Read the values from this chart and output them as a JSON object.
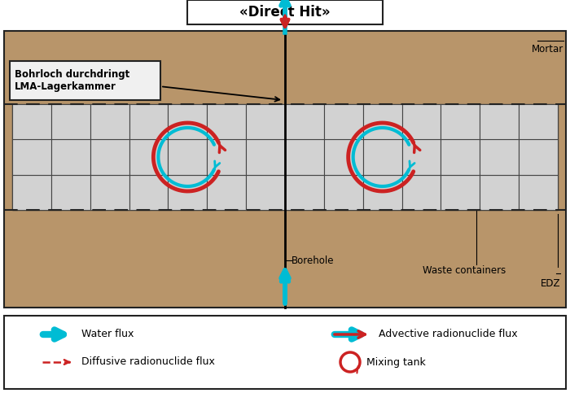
{
  "title": "«Direct Hit»",
  "bg_color": "#b8956a",
  "container_fill": "#c8c8c8",
  "container_border": "#555555",
  "cell_fill": "#d2d2d2",
  "borehole_color": "#000000",
  "cyan_color": "#00bcd4",
  "red_color": "#cc2222",
  "label_box_fill": "#f0f0f0",
  "label_box_edge": "#222222",
  "legend_bg": "#ffffff",
  "main_border": "#333333",
  "title_box_fill": "#ffffff",
  "text_black": "#000000",
  "label_text": "Bohrloch durchdringt\nLMA-Lagerkammer",
  "mortar_label": "Mortar",
  "borehole_label": "Borehole",
  "waste_label": "Waste containers",
  "edz_label": "EDZ"
}
